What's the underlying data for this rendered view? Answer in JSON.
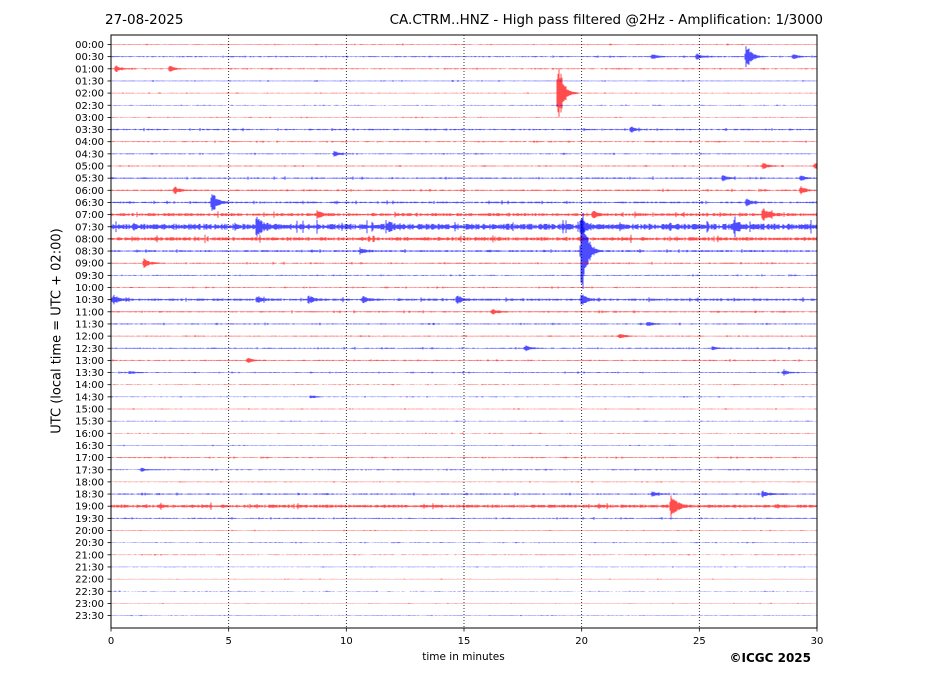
{
  "header": {
    "date": "27-08-2025",
    "title": "CA.CTRM..HNZ - High pass filtered @2Hz - Amplification: 1/3000"
  },
  "footer": {
    "credit": "©ICGC 2025"
  },
  "chart_data": {
    "type": "line",
    "title": "CA.CTRM..HNZ - High pass filtered @2Hz - Amplification: 1/3000",
    "xlabel": "time in minutes",
    "ylabel": "UTC (local time = UTC + 02:00)",
    "xlim": [
      0,
      30
    ],
    "xticks": [
      0,
      5,
      10,
      15,
      20,
      25,
      30
    ],
    "grid": "vertical dotted lines at each x tick",
    "trace_colors": [
      "#ff0000",
      "#0000ff"
    ],
    "rows": [
      "00:00",
      "00:30",
      "01:00",
      "01:30",
      "02:00",
      "02:30",
      "03:00",
      "03:30",
      "04:00",
      "04:30",
      "05:00",
      "05:30",
      "06:00",
      "06:30",
      "07:00",
      "07:30",
      "08:00",
      "08:30",
      "09:00",
      "09:30",
      "10:00",
      "10:30",
      "11:00",
      "11:30",
      "12:00",
      "12:30",
      "13:00",
      "13:30",
      "14:00",
      "14:30",
      "15:00",
      "15:30",
      "16:00",
      "16:30",
      "17:00",
      "17:30",
      "18:00",
      "18:30",
      "19:00",
      "19:30",
      "20:00",
      "20:30",
      "21:00",
      "21:30",
      "22:00",
      "22:30",
      "23:00",
      "23:30"
    ],
    "noise": [
      0.25,
      0.35,
      0.3,
      0.25,
      0.2,
      0.2,
      0.2,
      0.45,
      0.3,
      0.3,
      0.3,
      0.45,
      0.45,
      0.55,
      0.9,
      1.9,
      1.1,
      0.6,
      0.35,
      0.3,
      0.3,
      0.7,
      0.4,
      0.35,
      0.3,
      0.35,
      0.35,
      0.3,
      0.2,
      0.2,
      0.2,
      0.2,
      0.2,
      0.2,
      0.3,
      0.3,
      0.2,
      0.4,
      1.0,
      0.35,
      0.2,
      0.2,
      0.2,
      0.15,
      0.15,
      0.15,
      0.15,
      0.15
    ],
    "events": [
      {
        "row": 1,
        "t": 27.0,
        "amp": 14
      },
      {
        "row": 1,
        "t": 23.0,
        "amp": 3
      },
      {
        "row": 1,
        "t": 24.9,
        "amp": 3
      },
      {
        "row": 1,
        "t": 29.0,
        "amp": 3
      },
      {
        "row": 2,
        "t": 0.2,
        "amp": 4
      },
      {
        "row": 2,
        "t": 2.5,
        "amp": 3
      },
      {
        "row": 4,
        "t": 19.0,
        "amp": 38
      },
      {
        "row": 7,
        "t": 22.1,
        "amp": 3
      },
      {
        "row": 9,
        "t": 9.5,
        "amp": 3
      },
      {
        "row": 10,
        "t": 27.7,
        "amp": 4
      },
      {
        "row": 10,
        "t": 29.9,
        "amp": 3
      },
      {
        "row": 11,
        "t": 26.0,
        "amp": 3
      },
      {
        "row": 11,
        "t": 29.3,
        "amp": 3
      },
      {
        "row": 12,
        "t": 2.7,
        "amp": 4
      },
      {
        "row": 12,
        "t": 29.3,
        "amp": 4
      },
      {
        "row": 13,
        "t": 4.3,
        "amp": 12
      },
      {
        "row": 13,
        "t": 27.0,
        "amp": 4
      },
      {
        "row": 14,
        "t": 27.7,
        "amp": 9
      },
      {
        "row": 14,
        "t": 20.5,
        "amp": 4
      },
      {
        "row": 14,
        "t": 8.8,
        "amp": 3
      },
      {
        "row": 15,
        "t": 6.2,
        "amp": 12
      },
      {
        "row": 15,
        "t": 11.8,
        "amp": 5
      },
      {
        "row": 15,
        "t": 20.0,
        "amp": 7
      },
      {
        "row": 15,
        "t": 26.5,
        "amp": 6
      },
      {
        "row": 17,
        "t": 20.0,
        "amp": 52
      },
      {
        "row": 17,
        "t": 10.6,
        "amp": 3
      },
      {
        "row": 18,
        "t": 1.4,
        "amp": 6
      },
      {
        "row": 21,
        "t": 0.1,
        "amp": 5
      },
      {
        "row": 21,
        "t": 6.2,
        "amp": 4
      },
      {
        "row": 21,
        "t": 8.4,
        "amp": 4
      },
      {
        "row": 21,
        "t": 10.7,
        "amp": 4
      },
      {
        "row": 21,
        "t": 14.7,
        "amp": 5
      },
      {
        "row": 21,
        "t": 20.0,
        "amp": 6
      },
      {
        "row": 22,
        "t": 16.2,
        "amp": 3
      },
      {
        "row": 23,
        "t": 22.8,
        "amp": 3
      },
      {
        "row": 24,
        "t": 21.6,
        "amp": 3
      },
      {
        "row": 25,
        "t": 17.6,
        "amp": 3
      },
      {
        "row": 25,
        "t": 25.6,
        "amp": 2
      },
      {
        "row": 26,
        "t": 5.8,
        "amp": 3
      },
      {
        "row": 27,
        "t": 28.6,
        "amp": 3
      },
      {
        "row": 27,
        "t": 0.8,
        "amp": 2
      },
      {
        "row": 29,
        "t": 8.5,
        "amp": 2
      },
      {
        "row": 35,
        "t": 1.3,
        "amp": 2
      },
      {
        "row": 37,
        "t": 23.0,
        "amp": 3
      },
      {
        "row": 37,
        "t": 27.7,
        "amp": 4
      },
      {
        "row": 38,
        "t": 23.8,
        "amp": 14
      }
    ]
  }
}
